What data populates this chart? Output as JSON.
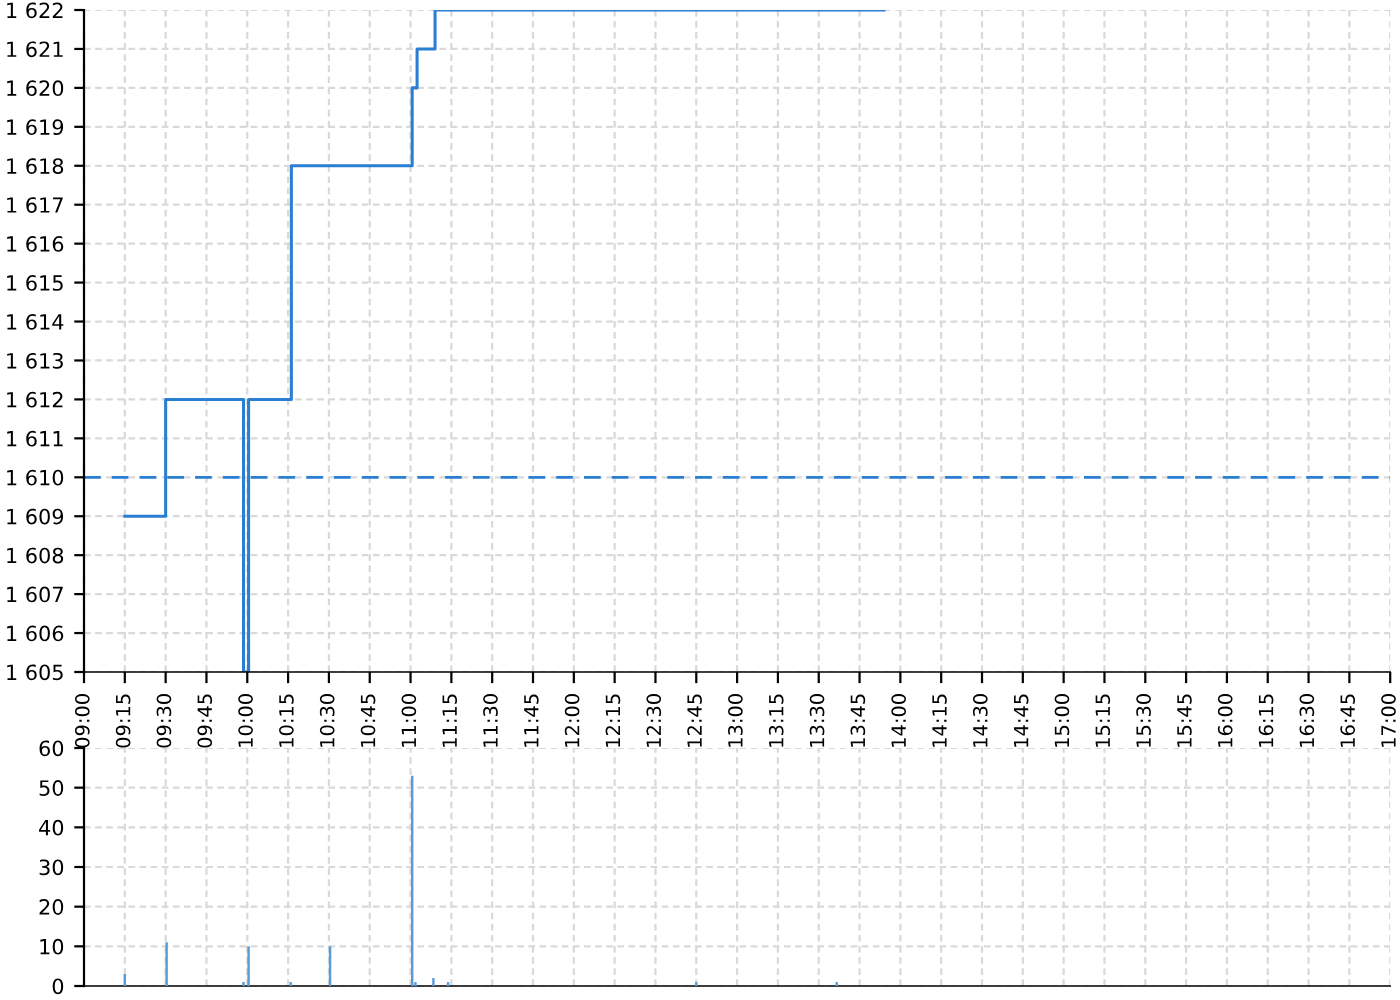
{
  "chart_data": [
    {
      "type": "step",
      "x": [
        9.25,
        9.5,
        9.977,
        10.008,
        10.27,
        11.01,
        11.04,
        11.15,
        13.9
      ],
      "series": [
        {
          "color": "#2a7fd4",
          "values": [
            1609,
            1612,
            1605,
            1612,
            1618,
            1620,
            1621,
            1622,
            1622
          ]
        }
      ],
      "xlim": [
        9.0,
        17.0
      ],
      "xticks": [
        {
          "value": 9.0,
          "label": "09:00"
        },
        {
          "value": 9.25,
          "label": "09:15"
        },
        {
          "value": 9.5,
          "label": "09:30"
        },
        {
          "value": 9.75,
          "label": "09:45"
        },
        {
          "value": 10.0,
          "label": "10:00"
        },
        {
          "value": 10.25,
          "label": "10:15"
        },
        {
          "value": 10.5,
          "label": "10:30"
        },
        {
          "value": 10.75,
          "label": "10:45"
        },
        {
          "value": 11.0,
          "label": "11:00"
        },
        {
          "value": 11.25,
          "label": "11:15"
        },
        {
          "value": 11.5,
          "label": "11:30"
        },
        {
          "value": 11.75,
          "label": "11:45"
        },
        {
          "value": 12.0,
          "label": "12:00"
        },
        {
          "value": 12.25,
          "label": "12:15"
        },
        {
          "value": 12.5,
          "label": "12:30"
        },
        {
          "value": 12.75,
          "label": "12:45"
        },
        {
          "value": 13.0,
          "label": "13:00"
        },
        {
          "value": 13.25,
          "label": "13:15"
        },
        {
          "value": 13.5,
          "label": "13:30"
        },
        {
          "value": 13.75,
          "label": "13:45"
        },
        {
          "value": 14.0,
          "label": "14:00"
        },
        {
          "value": 14.25,
          "label": "14:15"
        },
        {
          "value": 14.5,
          "label": "14:30"
        },
        {
          "value": 14.75,
          "label": "14:45"
        },
        {
          "value": 15.0,
          "label": "15:00"
        },
        {
          "value": 15.25,
          "label": "15:15"
        },
        {
          "value": 15.5,
          "label": "15:30"
        },
        {
          "value": 15.75,
          "label": "15:45"
        },
        {
          "value": 16.0,
          "label": "16:00"
        },
        {
          "value": 16.25,
          "label": "16:15"
        },
        {
          "value": 16.5,
          "label": "16:30"
        },
        {
          "value": 16.75,
          "label": "16:45"
        },
        {
          "value": 17.0,
          "label": "17:00"
        }
      ],
      "ylim": [
        1605,
        1622
      ],
      "yticks": [
        {
          "value": 1605,
          "label": "1 605"
        },
        {
          "value": 1606,
          "label": "1 606"
        },
        {
          "value": 1607,
          "label": "1 607"
        },
        {
          "value": 1608,
          "label": "1 608"
        },
        {
          "value": 1609,
          "label": "1 609"
        },
        {
          "value": 1610,
          "label": "1 610"
        },
        {
          "value": 1611,
          "label": "1 611"
        },
        {
          "value": 1612,
          "label": "1 612"
        },
        {
          "value": 1613,
          "label": "1 613"
        },
        {
          "value": 1614,
          "label": "1 614"
        },
        {
          "value": 1615,
          "label": "1 615"
        },
        {
          "value": 1616,
          "label": "1 616"
        },
        {
          "value": 1617,
          "label": "1 617"
        },
        {
          "value": 1618,
          "label": "1 618"
        },
        {
          "value": 1619,
          "label": "1 619"
        },
        {
          "value": 1620,
          "label": "1 620"
        },
        {
          "value": 1621,
          "label": "1 621"
        },
        {
          "value": 1622,
          "label": "1 622"
        }
      ],
      "ref_lines": [
        {
          "axis": "y",
          "value": 1610,
          "color": "#2a7fd4",
          "line_style": "dashed"
        }
      ],
      "grid": true,
      "line_style": "solid"
    },
    {
      "type": "bar",
      "x": [
        9.25,
        9.506,
        9.977,
        10.008,
        10.266,
        10.507,
        11.01,
        11.03,
        11.14,
        11.23,
        12.75,
        13.61
      ],
      "series": [
        {
          "color": "#5b9bd5",
          "values": [
            3,
            11,
            1,
            10,
            1,
            10,
            53,
            1,
            2,
            1,
            1,
            1
          ]
        }
      ],
      "xlim": [
        9.0,
        17.0
      ],
      "xticks": [
        {
          "value": 9.0,
          "label": null
        },
        {
          "value": 9.25,
          "label": null
        },
        {
          "value": 9.5,
          "label": null
        },
        {
          "value": 9.75,
          "label": null
        },
        {
          "value": 10.0,
          "label": null
        },
        {
          "value": 10.25,
          "label": null
        },
        {
          "value": 10.5,
          "label": null
        },
        {
          "value": 10.75,
          "label": null
        },
        {
          "value": 11.0,
          "label": null
        },
        {
          "value": 11.25,
          "label": null
        },
        {
          "value": 11.5,
          "label": null
        },
        {
          "value": 11.75,
          "label": null
        },
        {
          "value": 12.0,
          "label": null
        },
        {
          "value": 12.25,
          "label": null
        },
        {
          "value": 12.5,
          "label": null
        },
        {
          "value": 12.75,
          "label": null
        },
        {
          "value": 13.0,
          "label": null
        },
        {
          "value": 13.25,
          "label": null
        },
        {
          "value": 13.5,
          "label": null
        },
        {
          "value": 13.75,
          "label": null
        },
        {
          "value": 14.0,
          "label": null
        },
        {
          "value": 14.25,
          "label": null
        },
        {
          "value": 14.5,
          "label": null
        },
        {
          "value": 14.75,
          "label": null
        },
        {
          "value": 15.0,
          "label": null
        },
        {
          "value": 15.25,
          "label": null
        },
        {
          "value": 15.5,
          "label": null
        },
        {
          "value": 15.75,
          "label": null
        },
        {
          "value": 16.0,
          "label": null
        },
        {
          "value": 16.25,
          "label": null
        },
        {
          "value": 16.5,
          "label": null
        },
        {
          "value": 16.75,
          "label": null
        },
        {
          "value": 17.0,
          "label": null
        }
      ],
      "ylim": [
        0,
        60
      ],
      "yticks": [
        0,
        10,
        20,
        30,
        40,
        50,
        60
      ],
      "tick_labels": "y",
      "grid": true
    }
  ]
}
